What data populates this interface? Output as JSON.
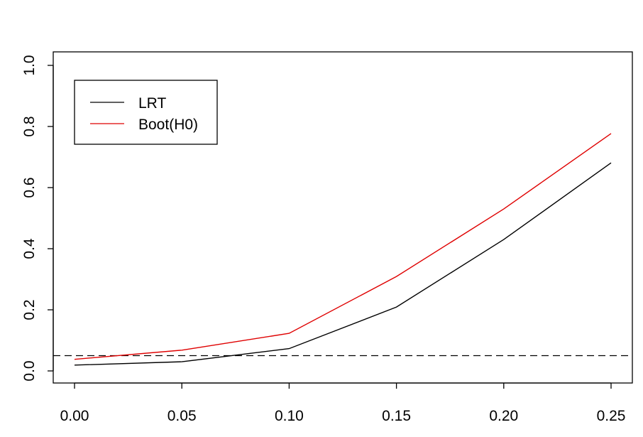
{
  "chart_data": {
    "type": "line",
    "title": "",
    "xlabel": "",
    "ylabel": "",
    "x": [
      0.0,
      0.05,
      0.1,
      0.15,
      0.2,
      0.25
    ],
    "xlim": [
      -0.01,
      0.26
    ],
    "ylim": [
      -0.04,
      1.04
    ],
    "x_ticks": [
      "0.00",
      "0.05",
      "0.10",
      "0.15",
      "0.20",
      "0.25"
    ],
    "y_ticks": [
      "0.0",
      "0.2",
      "0.4",
      "0.6",
      "0.8",
      "1.0"
    ],
    "grid": false,
    "legend_position": "top-left",
    "series": [
      {
        "name": "LRT",
        "color": "#000000",
        "values": [
          0.019,
          0.03,
          0.073,
          0.209,
          0.43,
          0.681
        ]
      },
      {
        "name": "Boot(H0)",
        "color": "#DF0000",
        "values": [
          0.038,
          0.068,
          0.123,
          0.309,
          0.53,
          0.777
        ]
      }
    ],
    "reference_line": {
      "y": 0.05,
      "style": "dashed",
      "color": "#000000"
    }
  }
}
